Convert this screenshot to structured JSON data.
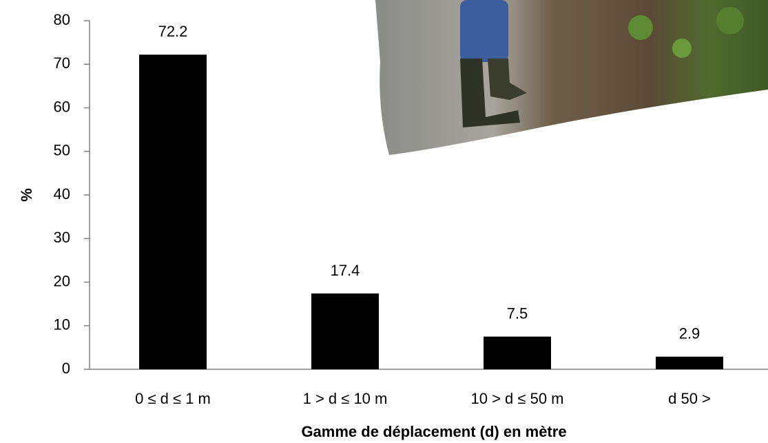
{
  "chart_data": {
    "type": "bar",
    "categories": [
      "0 ≤ d ≤  1 m",
      "1 > d ≤ 10 m",
      "10 > d ≤ 50 m",
      "d 50  >"
    ],
    "values": [
      72.2,
      17.4,
      7.5,
      2.9
    ],
    "color": "#000000",
    "ylabel": "%",
    "xlabel": "Gamme de déplacement (d) en mètre",
    "ylim": [
      0,
      80
    ],
    "yticks": [
      0,
      10,
      20,
      30,
      40,
      50,
      60,
      70,
      80
    ],
    "grid": false
  }
}
